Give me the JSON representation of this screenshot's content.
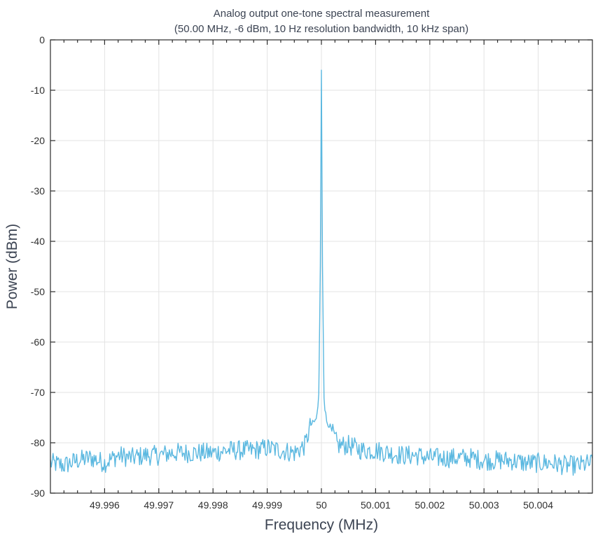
{
  "chart_data": {
    "type": "line",
    "title": "Analog output one-tone spectral measurement",
    "subtitle": "(50.00 MHz, -6 dBm, 10 Hz resolution bandwidth, 10 kHz span)",
    "xlabel": "Frequency (MHz)",
    "ylabel": "Power (dBm)",
    "xlim": [
      49.995,
      50.005
    ],
    "ylim": [
      -90,
      0
    ],
    "grid": true,
    "x_ticks": [
      49.996,
      49.997,
      49.998,
      49.999,
      50,
      50.001,
      50.002,
      50.003,
      50.004
    ],
    "x_tick_labels": [
      "49.996",
      "49.997",
      "49.998",
      "49.999",
      "50",
      "50.001",
      "50.002",
      "50.003",
      "50.004"
    ],
    "y_ticks": [
      0,
      -10,
      -20,
      -30,
      -40,
      -50,
      -60,
      -70,
      -80,
      -90
    ],
    "y_tick_labels": [
      "0",
      "-10",
      "-20",
      "-30",
      "-40",
      "-50",
      "-60",
      "-70",
      "-80",
      "-90"
    ],
    "line_color": "#5bb8e0",
    "series": [
      {
        "x": [
          49.995,
          49.99525,
          49.9955,
          49.99575,
          49.996,
          49.99625,
          49.9965,
          49.99675,
          49.997,
          49.99725,
          49.9975,
          49.99775,
          49.998,
          49.99825,
          49.9985,
          49.99875,
          49.999,
          49.99925,
          49.9995,
          49.9997,
          49.9998,
          49.99985,
          49.9999,
          49.99995,
          49.99998,
          50,
          50.00002,
          50.00005,
          50.0001,
          50.00015,
          50.0002,
          50.0003,
          50.0005,
          50.00075,
          50.001,
          50.00125,
          50.0015,
          50.00175,
          50.002,
          50.00225,
          50.0025,
          50.00275,
          50.003,
          50.00325,
          50.0035,
          50.00375,
          50.004,
          50.00425,
          50.0045,
          50.00475,
          50.005
        ],
        "y": [
          -84,
          -84.5,
          -83.5,
          -83,
          -84,
          -82.5,
          -83,
          -82.5,
          -82.5,
          -82,
          -82,
          -82,
          -82,
          -81.5,
          -81.5,
          -81.5,
          -81,
          -81.5,
          -82,
          -80.5,
          -76.5,
          -76,
          -75.5,
          -72,
          -45,
          -6,
          -45,
          -72,
          -76,
          -76.5,
          -78,
          -80.5,
          -80.5,
          -81.5,
          -81.5,
          -82,
          -82.5,
          -82.5,
          -83,
          -83,
          -83,
          -83,
          -83.5,
          -83.5,
          -83.5,
          -84,
          -84,
          -84,
          -84.5,
          -84.5,
          -84
        ]
      }
    ]
  }
}
